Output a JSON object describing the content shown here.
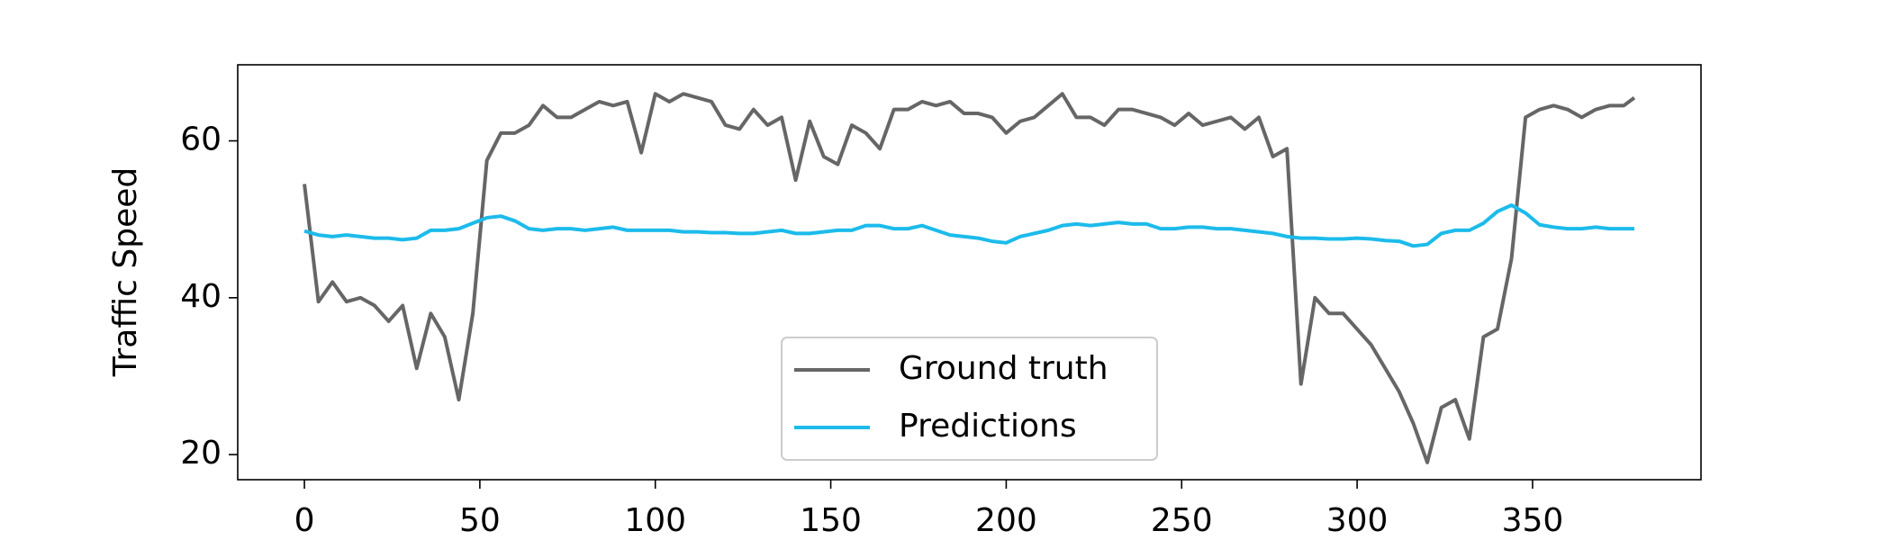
{
  "chart_data": {
    "type": "line",
    "y_label": "Traffic Speed",
    "x": [
      0,
      4,
      8,
      12,
      16,
      20,
      24,
      28,
      32,
      36,
      40,
      44,
      48,
      52,
      56,
      60,
      64,
      68,
      72,
      76,
      80,
      84,
      88,
      92,
      96,
      100,
      104,
      108,
      112,
      116,
      120,
      124,
      128,
      132,
      136,
      140,
      144,
      148,
      152,
      156,
      160,
      164,
      168,
      172,
      176,
      180,
      184,
      188,
      192,
      196,
      200,
      204,
      208,
      212,
      216,
      220,
      224,
      228,
      232,
      236,
      240,
      244,
      248,
      252,
      256,
      260,
      264,
      268,
      272,
      276,
      280,
      284,
      288,
      292,
      296,
      300,
      304,
      308,
      312,
      316,
      320,
      324,
      328,
      332,
      336,
      340,
      344,
      348,
      352,
      356,
      360,
      364,
      368,
      372,
      376,
      379
    ],
    "series": [
      {
        "name": "Ground truth",
        "color": "#666666",
        "values": [
          54.5,
          39.5,
          42,
          39.5,
          40,
          39,
          37,
          39,
          31,
          38,
          35,
          27,
          38,
          57.5,
          61,
          61,
          62,
          64.5,
          63,
          63,
          64,
          65,
          64.5,
          65,
          58.5,
          66,
          65,
          66,
          65.5,
          65,
          62,
          61.5,
          64,
          62,
          63,
          55,
          62.5,
          58,
          57,
          62,
          61,
          59,
          64,
          64,
          65,
          64.5,
          65,
          63.5,
          63.5,
          63,
          61,
          62.5,
          63,
          64.5,
          66,
          63,
          63,
          62,
          64,
          64,
          63.5,
          63,
          62,
          63.5,
          62,
          62.5,
          63,
          61.5,
          63,
          58,
          59,
          29,
          40,
          38,
          38,
          36,
          34,
          31,
          28,
          24,
          19,
          26,
          27,
          22,
          35,
          36,
          45,
          63,
          64,
          64.5,
          64,
          63,
          64,
          64.5,
          64.5,
          65.5
        ]
      },
      {
        "name": "Predictions",
        "color": "#1cbbeb",
        "values": [
          48.5,
          48,
          47.8,
          48,
          47.8,
          47.6,
          47.6,
          47.4,
          47.6,
          48.6,
          48.6,
          48.8,
          49.5,
          50.2,
          50.4,
          49.8,
          48.8,
          48.6,
          48.8,
          48.8,
          48.6,
          48.8,
          49,
          48.6,
          48.6,
          48.6,
          48.6,
          48.4,
          48.4,
          48.3,
          48.3,
          48.2,
          48.2,
          48.4,
          48.6,
          48.2,
          48.2,
          48.4,
          48.6,
          48.6,
          49.2,
          49.2,
          48.8,
          48.8,
          49.2,
          48.6,
          48,
          47.8,
          47.6,
          47.2,
          47,
          47.8,
          48.2,
          48.6,
          49.2,
          49.4,
          49.2,
          49.4,
          49.6,
          49.4,
          49.4,
          48.8,
          48.8,
          49,
          49,
          48.8,
          48.8,
          48.6,
          48.4,
          48.2,
          47.8,
          47.6,
          47.6,
          47.5,
          47.5,
          47.6,
          47.5,
          47.3,
          47.2,
          46.6,
          46.8,
          48.2,
          48.6,
          48.6,
          49.5,
          51,
          51.8,
          50.8,
          49.3,
          49,
          48.8,
          48.8,
          49,
          48.8,
          48.8,
          48.8
        ]
      }
    ],
    "xlim": [
      -19,
      398
    ],
    "ylim": [
      16.8,
      69.7
    ],
    "xticks": [
      0,
      50,
      100,
      150,
      200,
      250,
      300,
      350
    ],
    "yticks": [
      20,
      40,
      60
    ],
    "legend": "lower center"
  }
}
